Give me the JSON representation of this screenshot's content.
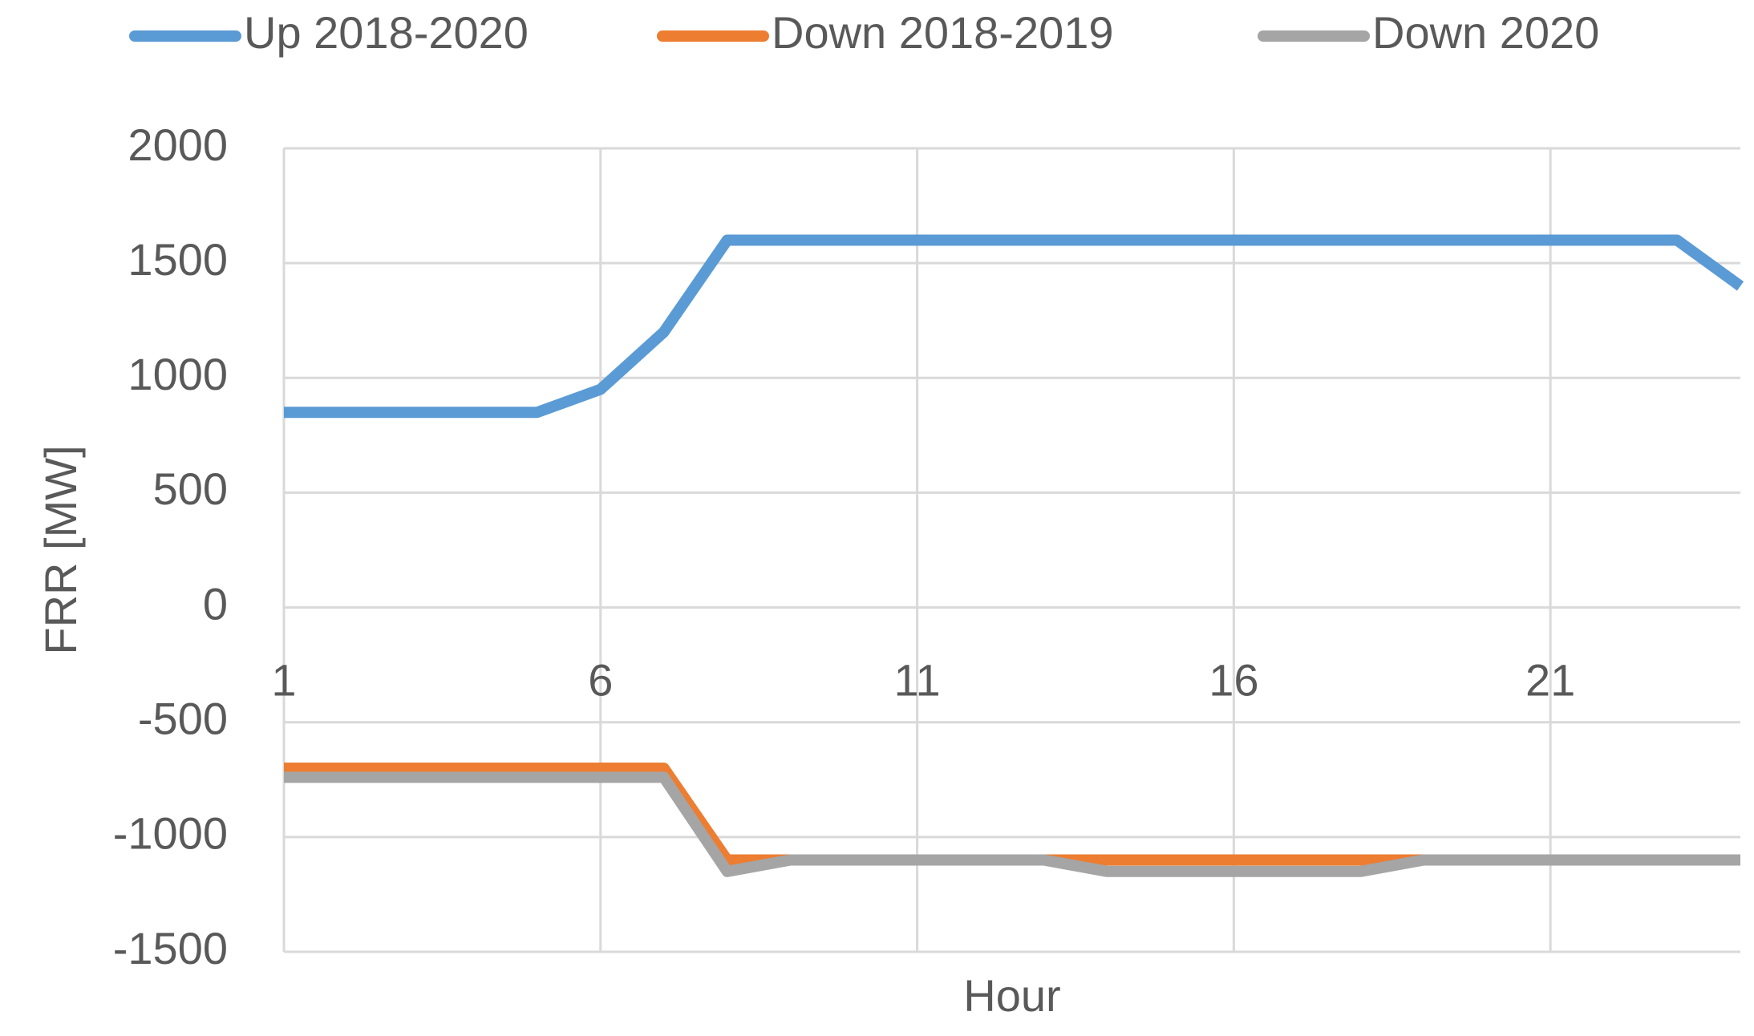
{
  "chart_data": {
    "type": "line",
    "x_label": "Hour",
    "y_label": "FRR [MW]",
    "x": [
      1,
      2,
      3,
      4,
      5,
      6,
      7,
      8,
      9,
      10,
      11,
      12,
      13,
      14,
      15,
      16,
      17,
      18,
      19,
      20,
      21,
      22,
      23,
      24
    ],
    "xlim": [
      1,
      24
    ],
    "xticks": [
      1,
      6,
      11,
      16,
      21
    ],
    "ylim": [
      -1500,
      2000
    ],
    "yticks": [
      -1500,
      -1000,
      -500,
      0,
      500,
      1000,
      1500,
      2000
    ],
    "grid": true,
    "legend": "top",
    "series": [
      {
        "name": "Up 2018-2020",
        "color": "#5b9bd5",
        "values": [
          850,
          850,
          850,
          850,
          850,
          950,
          1200,
          1600,
          1600,
          1600,
          1600,
          1600,
          1600,
          1600,
          1600,
          1600,
          1600,
          1600,
          1600,
          1600,
          1600,
          1600,
          1600,
          1400
        ]
      },
      {
        "name": "Down 2018-2019",
        "color": "#ed7d31",
        "values": [
          -700,
          -700,
          -700,
          -700,
          -700,
          -700,
          -700,
          -1100,
          -1100,
          -1100,
          -1100,
          -1100,
          -1100,
          -1100,
          -1100,
          -1100,
          -1100,
          -1100,
          -1100,
          -1100,
          -1100,
          -1100,
          -1100,
          -1100
        ]
      },
      {
        "name": "Down 2020",
        "color": "#a5a5a5",
        "values": [
          -740,
          -740,
          -740,
          -740,
          -740,
          -740,
          -740,
          -1150,
          -1100,
          -1100,
          -1100,
          -1100,
          -1100,
          -1150,
          -1150,
          -1150,
          -1150,
          -1150,
          -1100,
          -1100,
          -1100,
          -1100,
          -1100,
          -1100
        ]
      }
    ]
  }
}
